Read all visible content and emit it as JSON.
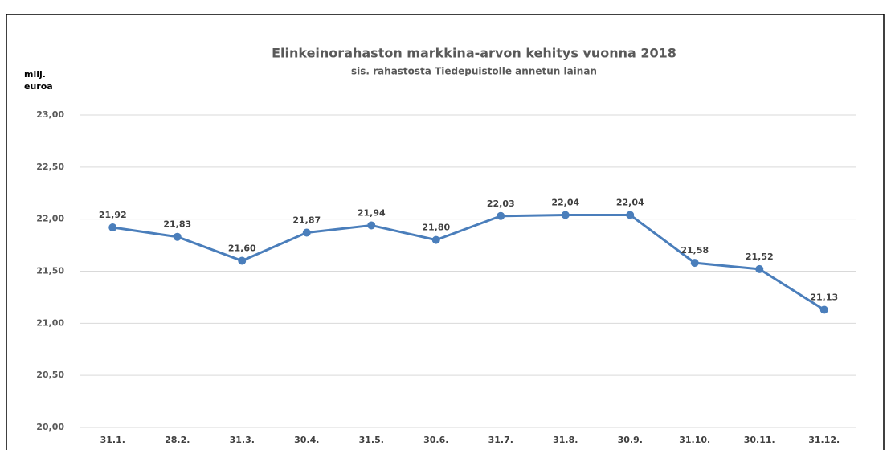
{
  "chart_data": {
    "type": "line",
    "title": "Elinkeinorahaston markkina-arvon kehitys vuonna 2018",
    "subtitle": "sis. rahastosta Tiedepuistolle annetun lainan",
    "y_label": [
      "milj.",
      "euroa"
    ],
    "categories": [
      "31.1.",
      "28.2.",
      "31.3.",
      "30.4.",
      "31.5.",
      "30.6.",
      "31.7.",
      "31.8.",
      "30.9.",
      "31.10.",
      "30.11.",
      "31.12."
    ],
    "series": [
      {
        "color": "#4a7ebb",
        "values": [
          21.92,
          21.83,
          21.6,
          21.87,
          21.94,
          21.8,
          22.03,
          22.04,
          22.04,
          21.58,
          21.52,
          21.13
        ],
        "value_labels": [
          "21,92",
          "21,83",
          "21,60",
          "21,87",
          "21,94",
          "21,80",
          "22,03",
          "22,04",
          "22,04",
          "21,58",
          "21,52",
          "21,13"
        ]
      }
    ],
    "ylim": [
      20,
      23
    ],
    "yticks": [
      {
        "value": 20,
        "label": "20,00"
      },
      {
        "value": 20.5,
        "label": "20,50"
      },
      {
        "value": 21,
        "label": "21,00"
      },
      {
        "value": 21.5,
        "label": "21,50"
      },
      {
        "value": 22,
        "label": "22,00"
      },
      {
        "value": 22.5,
        "label": "22,50"
      },
      {
        "value": 23,
        "label": "23,00"
      }
    ],
    "grid": true
  }
}
